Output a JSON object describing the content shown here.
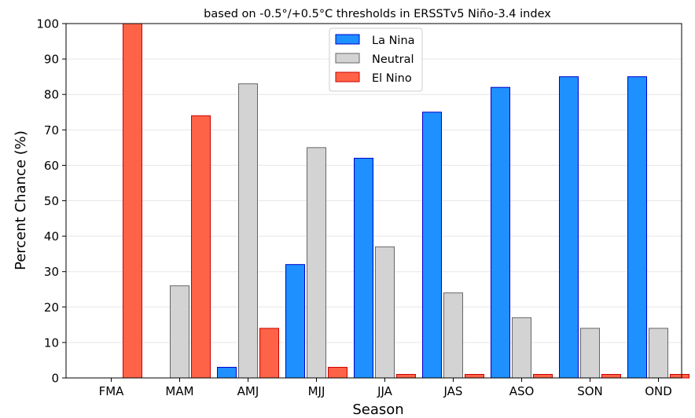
{
  "chart_data": {
    "type": "bar",
    "title": "based on -0.5°/+0.5°C thresholds in ERSSTv5 Niño-3.4 index",
    "xlabel": "Season",
    "ylabel": "Percent Chance (%)",
    "ylim": [
      0,
      100
    ],
    "yticks": [
      0,
      10,
      20,
      30,
      40,
      50,
      60,
      70,
      80,
      90,
      100
    ],
    "grid": "horizontal",
    "legend_position": "top-center",
    "categories": [
      "FMA",
      "MAM",
      "AMJ",
      "MJJ",
      "JJA",
      "JAS",
      "ASO",
      "SON",
      "OND"
    ],
    "series": [
      {
        "name": "La Nina",
        "color": "#1e90ff",
        "edge": "#0000cc",
        "values": [
          0,
          0,
          3,
          32,
          62,
          75,
          82,
          85,
          85
        ]
      },
      {
        "name": "Neutral",
        "color": "#d3d3d3",
        "edge": "#666666",
        "values": [
          0,
          26,
          83,
          65,
          37,
          24,
          17,
          14,
          14
        ]
      },
      {
        "name": "El Nino",
        "color": "#ff6347",
        "edge": "#cc0000",
        "values": [
          100,
          74,
          14,
          3,
          1,
          1,
          1,
          1,
          1
        ]
      }
    ]
  }
}
